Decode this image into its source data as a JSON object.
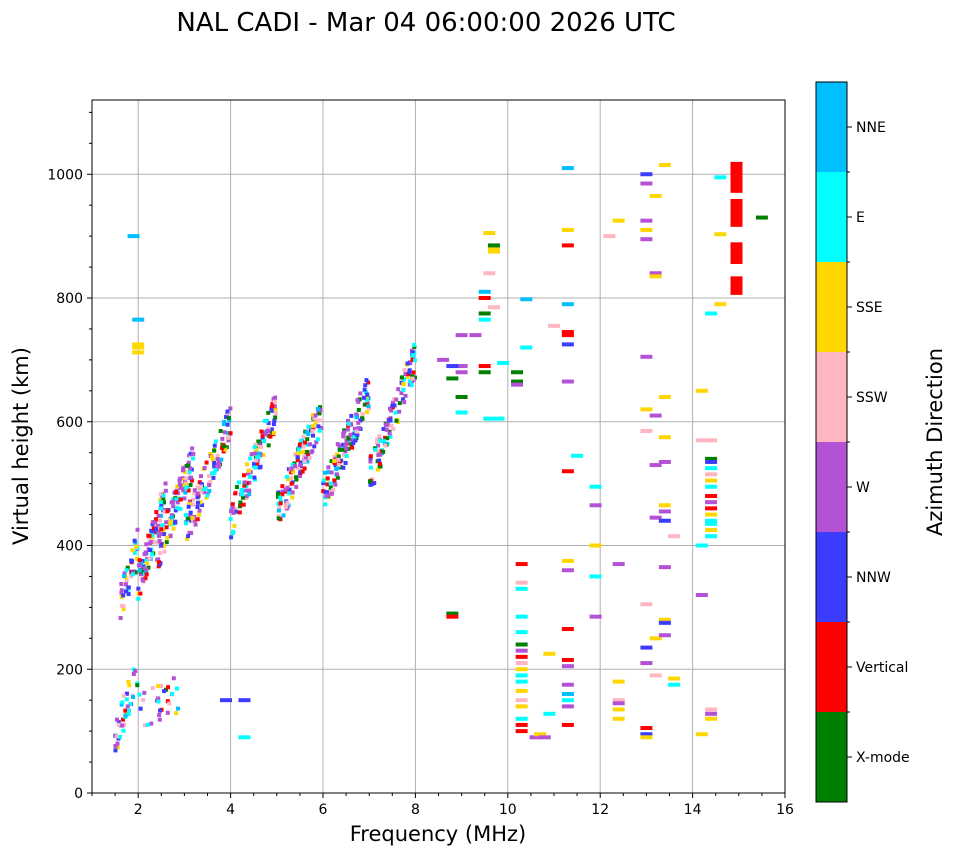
{
  "chart_data": {
    "type": "scatter",
    "title": "NAL CADI - Mar 04 06:00:00 2026 UTC",
    "xlabel": "Frequency (MHz)",
    "ylabel": "Virtual height (km)",
    "xlim": [
      1,
      16
    ],
    "ylim": [
      0,
      1120
    ],
    "xticks": [
      2,
      4,
      6,
      8,
      10,
      12,
      14,
      16
    ],
    "yticks": [
      0,
      200,
      400,
      600,
      800,
      1000
    ],
    "grid": true,
    "colorbar": {
      "label": "Azimuth Direction",
      "categories": [
        {
          "name": "X-mode",
          "color": "#008000"
        },
        {
          "name": "Vertical",
          "color": "#ff0000"
        },
        {
          "name": "NNW",
          "color": "#3c3cff"
        },
        {
          "name": "W",
          "color": "#b452d6"
        },
        {
          "name": "SSW",
          "color": "#ffb6c1"
        },
        {
          "name": "SSE",
          "color": "#ffd700"
        },
        {
          "name": "E",
          "color": "#00ffff"
        },
        {
          "name": "NNE",
          "color": "#00bfff"
        }
      ]
    },
    "trace_bands": [
      {
        "f0": 1.6,
        "f1": 2.0,
        "h0": 300,
        "h1": 400,
        "n": 40
      },
      {
        "f0": 2.0,
        "f1": 2.6,
        "h0": 340,
        "h1": 480,
        "n": 90
      },
      {
        "f0": 2.4,
        "f1": 3.2,
        "h0": 380,
        "h1": 540,
        "n": 110
      },
      {
        "f0": 3.0,
        "f1": 4.0,
        "h0": 420,
        "h1": 600,
        "n": 110
      },
      {
        "f0": 4.0,
        "f1": 5.0,
        "h0": 440,
        "h1": 620,
        "n": 110
      },
      {
        "f0": 5.0,
        "f1": 6.0,
        "h0": 450,
        "h1": 620,
        "n": 130
      },
      {
        "f0": 6.0,
        "f1": 7.0,
        "h0": 480,
        "h1": 650,
        "n": 130
      },
      {
        "f0": 7.0,
        "f1": 8.0,
        "h0": 510,
        "h1": 700,
        "n": 120
      },
      {
        "f0": 1.5,
        "f1": 2.0,
        "h0": 90,
        "h1": 200,
        "n": 40
      },
      {
        "f0": 2.0,
        "f1": 2.9,
        "h0": 130,
        "h1": 160,
        "n": 30
      }
    ],
    "points": [
      [
        1.9,
        900,
        7
      ],
      [
        2.0,
        765,
        7
      ],
      [
        2.0,
        725,
        5
      ],
      [
        2.0,
        720,
        5
      ],
      [
        2.0,
        712,
        5
      ],
      [
        3.9,
        150,
        2
      ],
      [
        4.3,
        150,
        2
      ],
      [
        4.3,
        90,
        6
      ],
      [
        8.8,
        290,
        0
      ],
      [
        8.8,
        285,
        1
      ],
      [
        9.3,
        740,
        3
      ],
      [
        9.5,
        680,
        0
      ],
      [
        9.5,
        690,
        1
      ],
      [
        9.6,
        605,
        6
      ],
      [
        9.8,
        605,
        6
      ],
      [
        10.2,
        680,
        0
      ],
      [
        10.2,
        665,
        0
      ],
      [
        10.2,
        660,
        3
      ],
      [
        10.3,
        370,
        1
      ],
      [
        10.3,
        340,
        4
      ],
      [
        10.3,
        330,
        6
      ],
      [
        10.3,
        285,
        6
      ],
      [
        10.3,
        260,
        6
      ],
      [
        10.3,
        240,
        0
      ],
      [
        10.3,
        230,
        3
      ],
      [
        10.3,
        220,
        1
      ],
      [
        10.3,
        210,
        4
      ],
      [
        10.3,
        200,
        5
      ],
      [
        10.3,
        190,
        6
      ],
      [
        10.3,
        180,
        6
      ],
      [
        10.3,
        165,
        5
      ],
      [
        10.3,
        150,
        4
      ],
      [
        10.3,
        140,
        5
      ],
      [
        10.3,
        120,
        6
      ],
      [
        10.3,
        110,
        1
      ],
      [
        10.3,
        100,
        1
      ],
      [
        10.4,
        720,
        6
      ],
      [
        10.4,
        798,
        7
      ],
      [
        10.6,
        90,
        3
      ],
      [
        10.7,
        95,
        5
      ],
      [
        10.8,
        90,
        3
      ],
      [
        10.9,
        225,
        5
      ],
      [
        10.9,
        128,
        6
      ],
      [
        11.0,
        755,
        4
      ],
      [
        11.3,
        1010,
        7
      ],
      [
        11.3,
        910,
        5
      ],
      [
        11.3,
        885,
        1
      ],
      [
        11.3,
        790,
        7
      ],
      [
        11.3,
        745,
        1
      ],
      [
        11.3,
        740,
        1
      ],
      [
        11.3,
        725,
        2
      ],
      [
        11.3,
        665,
        3
      ],
      [
        11.3,
        520,
        1
      ],
      [
        11.3,
        375,
        5
      ],
      [
        11.3,
        360,
        3
      ],
      [
        11.3,
        265,
        1
      ],
      [
        11.3,
        215,
        1
      ],
      [
        11.3,
        205,
        3
      ],
      [
        11.3,
        175,
        3
      ],
      [
        11.3,
        160,
        7
      ],
      [
        11.3,
        150,
        6
      ],
      [
        11.3,
        140,
        3
      ],
      [
        11.3,
        110,
        1
      ],
      [
        11.5,
        545,
        6
      ],
      [
        11.9,
        495,
        6
      ],
      [
        11.9,
        465,
        3
      ],
      [
        11.9,
        400,
        5
      ],
      [
        11.9,
        350,
        6
      ],
      [
        11.9,
        285,
        3
      ],
      [
        12.2,
        900,
        4
      ],
      [
        12.4,
        925,
        5
      ],
      [
        12.4,
        370,
        3
      ],
      [
        12.4,
        180,
        5
      ],
      [
        12.4,
        150,
        4
      ],
      [
        12.4,
        145,
        3
      ],
      [
        12.4,
        135,
        5
      ],
      [
        12.4,
        120,
        5
      ],
      [
        13.0,
        1000,
        2
      ],
      [
        13.0,
        985,
        3
      ],
      [
        13.0,
        925,
        3
      ],
      [
        13.0,
        910,
        5
      ],
      [
        13.0,
        895,
        3
      ],
      [
        13.0,
        705,
        3
      ],
      [
        13.0,
        620,
        5
      ],
      [
        13.0,
        585,
        4
      ],
      [
        13.0,
        305,
        4
      ],
      [
        13.0,
        235,
        2
      ],
      [
        13.0,
        210,
        3
      ],
      [
        13.0,
        105,
        1
      ],
      [
        13.0,
        95,
        2
      ],
      [
        13.0,
        90,
        5
      ],
      [
        13.2,
        965,
        5
      ],
      [
        13.2,
        840,
        3
      ],
      [
        13.2,
        835,
        5
      ],
      [
        13.2,
        610,
        3
      ],
      [
        13.2,
        530,
        3
      ],
      [
        13.2,
        445,
        3
      ],
      [
        13.2,
        250,
        5
      ],
      [
        13.2,
        190,
        4
      ],
      [
        13.4,
        1015,
        5
      ],
      [
        13.4,
        640,
        5
      ],
      [
        13.4,
        575,
        5
      ],
      [
        13.4,
        535,
        3
      ],
      [
        13.4,
        465,
        5
      ],
      [
        13.4,
        455,
        3
      ],
      [
        13.4,
        440,
        2
      ],
      [
        13.4,
        365,
        3
      ],
      [
        13.4,
        280,
        5
      ],
      [
        13.4,
        275,
        2
      ],
      [
        13.4,
        255,
        3
      ],
      [
        13.6,
        415,
        4
      ],
      [
        13.6,
        185,
        5
      ],
      [
        13.6,
        175,
        6
      ],
      [
        14.2,
        650,
        5
      ],
      [
        14.2,
        570,
        4
      ],
      [
        14.2,
        400,
        6
      ],
      [
        14.2,
        320,
        3
      ],
      [
        14.2,
        95,
        5
      ],
      [
        14.4,
        775,
        6
      ],
      [
        14.4,
        570,
        4
      ],
      [
        14.4,
        540,
        0
      ],
      [
        14.4,
        535,
        2
      ],
      [
        14.4,
        525,
        6
      ],
      [
        14.4,
        515,
        4
      ],
      [
        14.4,
        505,
        5
      ],
      [
        14.4,
        495,
        6
      ],
      [
        14.4,
        480,
        1
      ],
      [
        14.4,
        470,
        3
      ],
      [
        14.4,
        460,
        1
      ],
      [
        14.4,
        450,
        5
      ],
      [
        14.4,
        440,
        6
      ],
      [
        14.4,
        435,
        6
      ],
      [
        14.4,
        425,
        5
      ],
      [
        14.4,
        415,
        6
      ],
      [
        14.4,
        135,
        4
      ],
      [
        14.4,
        128,
        3
      ],
      [
        14.4,
        120,
        5
      ],
      [
        14.6,
        995,
        6
      ],
      [
        14.6,
        903,
        5
      ],
      [
        14.6,
        790,
        5
      ],
      [
        15.5,
        930,
        0
      ],
      [
        9.6,
        840,
        4
      ],
      [
        9.7,
        880,
        5
      ],
      [
        9.7,
        875,
        5
      ],
      [
        9.6,
        905,
        5
      ],
      [
        9.7,
        885,
        0
      ],
      [
        9.5,
        810,
        7
      ],
      [
        9.5,
        800,
        1
      ],
      [
        9.5,
        775,
        0
      ],
      [
        9.5,
        765,
        6
      ],
      [
        9.7,
        785,
        4
      ],
      [
        9.9,
        695,
        6
      ],
      [
        9.0,
        740,
        3
      ],
      [
        9.0,
        690,
        3
      ],
      [
        9.0,
        680,
        3
      ],
      [
        9.0,
        640,
        0
      ],
      [
        9.0,
        615,
        6
      ],
      [
        8.6,
        700,
        3
      ],
      [
        8.8,
        690,
        2
      ],
      [
        8.8,
        670,
        0
      ]
    ],
    "vertical_segments": [
      {
        "f": 14.95,
        "h0": 970,
        "h1": 1020
      },
      {
        "f": 14.95,
        "h0": 915,
        "h1": 960
      },
      {
        "f": 14.95,
        "h0": 855,
        "h1": 890
      },
      {
        "f": 14.95,
        "h0": 805,
        "h1": 835
      }
    ]
  }
}
